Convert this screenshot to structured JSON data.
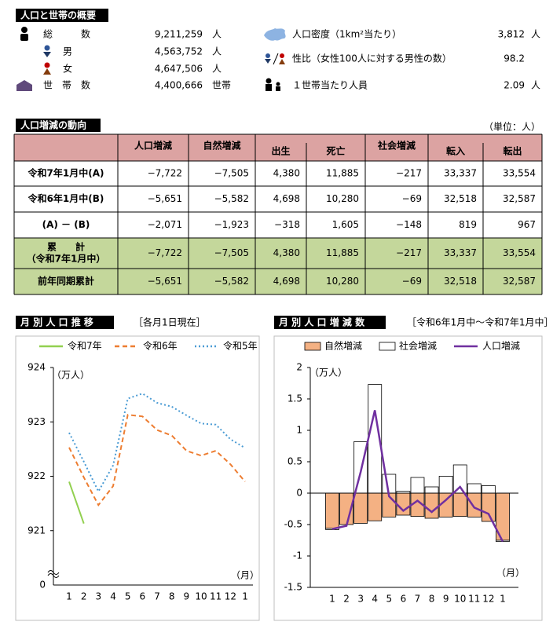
{
  "summary": {
    "title": "人口と世帯の概要",
    "items": [
      {
        "label": "総　　　数",
        "value": "9,211,259",
        "unit": "人"
      },
      {
        "label": "男",
        "value": "4,563,752",
        "unit": "人"
      },
      {
        "label": "女",
        "value": "4,647,506",
        "unit": "人"
      },
      {
        "label": "世　帯　数",
        "value": "4,400,666",
        "unit": "世帯"
      },
      {
        "label": "人口密度（1km²当たり）",
        "value": "3,812",
        "unit": "人"
      },
      {
        "label": "性比（女性100人に対する男性の数）",
        "value": "98.2"
      },
      {
        "label": "１世帯当たり人員",
        "value": "2.09",
        "unit": "人"
      }
    ]
  },
  "trend": {
    "title": "人口増減の動向",
    "unit": "（単位：人）",
    "columns": [
      "人口増減",
      "自然増減",
      "出生",
      "死亡",
      "社会増減",
      "転入",
      "転出"
    ],
    "rows": [
      {
        "label": [
          "令和7年1月中(A)"
        ],
        "values": [
          "−7,722",
          "−7,505",
          "4,380",
          "11,885",
          "−217",
          "33,337",
          "33,554"
        ]
      },
      {
        "label": [
          "令和6年1月中(B)"
        ],
        "values": [
          "−5,651",
          "−5,582",
          "4,698",
          "10,280",
          "−69",
          "32,518",
          "32,587"
        ]
      },
      {
        "label": [
          "(A) － (B)"
        ],
        "values": [
          "−2,071",
          "−1,923",
          "−318",
          "1,605",
          "−148",
          "819",
          "967"
        ]
      },
      {
        "label": [
          "累　　計",
          "（令和7年1月中）"
        ],
        "values": [
          "−7,722",
          "−7,505",
          "4,380",
          "11,885",
          "−217",
          "33,337",
          "33,554"
        ],
        "highlight": true
      },
      {
        "label": [
          "前年同期累計"
        ],
        "values": [
          "−5,651",
          "−5,582",
          "4,698",
          "10,280",
          "−69",
          "32,518",
          "32,587"
        ],
        "highlight": true
      }
    ]
  },
  "chart_data": [
    {
      "type": "line",
      "title": "月 別 人 口 推 移",
      "subtitle": "［各月1日現在］",
      "y_label": "（万人）",
      "x_label": "（月）",
      "categories": [
        "1",
        "2",
        "3",
        "4",
        "5",
        "6",
        "7",
        "8",
        "9",
        "10",
        "11",
        "12",
        "1"
      ],
      "ylim": [
        920,
        924
      ],
      "yticks": [
        921,
        922,
        923,
        924
      ],
      "ybreak": 0,
      "series": [
        {
          "name": "令和7年",
          "color": "#92d050",
          "dash": "solid",
          "values": [
            921.9,
            921.13,
            null,
            null,
            null,
            null,
            null,
            null,
            null,
            null,
            null,
            null,
            null
          ]
        },
        {
          "name": "令和6年",
          "color": "#ed7d31",
          "dash": "dashed",
          "values": [
            922.53,
            921.98,
            921.47,
            921.82,
            923.13,
            923.1,
            922.85,
            922.75,
            922.47,
            922.38,
            922.47,
            922.22,
            921.9
          ]
        },
        {
          "name": "令和5年",
          "color": "#4a9bd4",
          "dash": "dotted",
          "values": [
            922.8,
            922.27,
            921.72,
            922.2,
            923.43,
            923.52,
            923.35,
            923.28,
            923.12,
            922.97,
            922.95,
            922.68,
            922.52
          ]
        }
      ]
    },
    {
      "type": "bar_line",
      "title": "月 別 人 口 増 減 数",
      "subtitle": "［令和6年1月中～令和7年1月中］",
      "y_label": "（万人）",
      "x_label": "（月）",
      "categories": [
        "1",
        "2",
        "3",
        "4",
        "5",
        "6",
        "7",
        "8",
        "9",
        "10",
        "11",
        "12",
        "1"
      ],
      "ylim": [
        -1.5,
        2
      ],
      "yticks": [
        -1.5,
        -1,
        -0.5,
        0,
        0.5,
        1,
        1.5,
        2
      ],
      "series": [
        {
          "name": "自然増減",
          "kind": "bar",
          "color": "#f4b183",
          "values": [
            -0.56,
            -0.5,
            -0.48,
            -0.44,
            -0.38,
            -0.35,
            -0.37,
            -0.4,
            -0.38,
            -0.37,
            -0.38,
            -0.45,
            -0.75
          ]
        },
        {
          "name": "社会増減",
          "kind": "bar",
          "color": "#ffffff",
          "values": [
            -0.02,
            0,
            0.82,
            1.73,
            0.3,
            0.03,
            0.25,
            0.1,
            0.27,
            0.45,
            0.15,
            0.12,
            -0.02
          ]
        },
        {
          "name": "人口増減",
          "kind": "line",
          "color": "#7030a0",
          "values": [
            -0.57,
            -0.52,
            0.34,
            1.32,
            -0.05,
            -0.28,
            -0.12,
            -0.3,
            -0.11,
            0.1,
            -0.23,
            -0.33,
            -0.77
          ]
        }
      ]
    }
  ]
}
